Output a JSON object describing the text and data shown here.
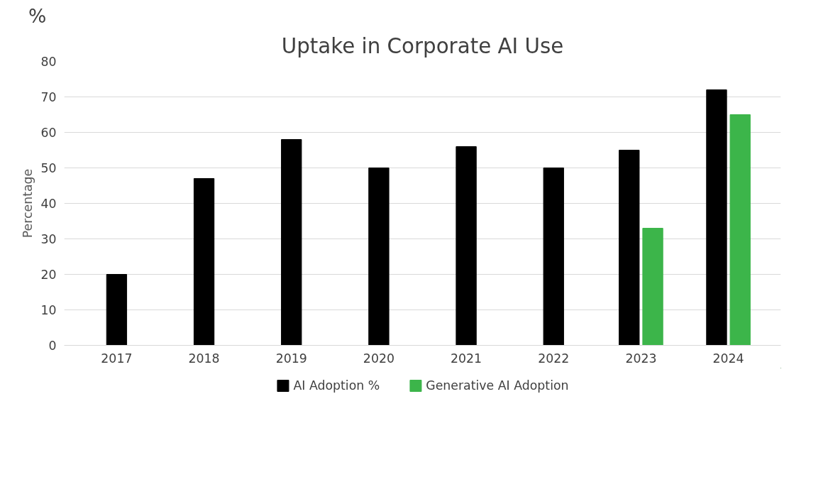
{
  "chart_data": {
    "type": "bar",
    "title": "Uptake in Corporate AI Use",
    "ylabel": "Percentage",
    "annotations": [
      "%"
    ],
    "categories": [
      "2017",
      "2018",
      "2019",
      "2020",
      "2021",
      "2022",
      "2023",
      "2024"
    ],
    "series": [
      {
        "name": "AI Adoption %",
        "color": "#000000",
        "values": [
          20,
          47,
          58,
          50,
          56,
          50,
          55,
          72
        ]
      },
      {
        "name": "Generative AI Adoption",
        "color": "#3cb54a",
        "values": [
          null,
          null,
          null,
          null,
          null,
          null,
          33,
          65
        ]
      }
    ],
    "ylim": [
      0,
      80
    ],
    "yticks": [
      0,
      10,
      20,
      30,
      40,
      50,
      60,
      70,
      80
    ],
    "grid": "y",
    "legend": "bottom"
  }
}
